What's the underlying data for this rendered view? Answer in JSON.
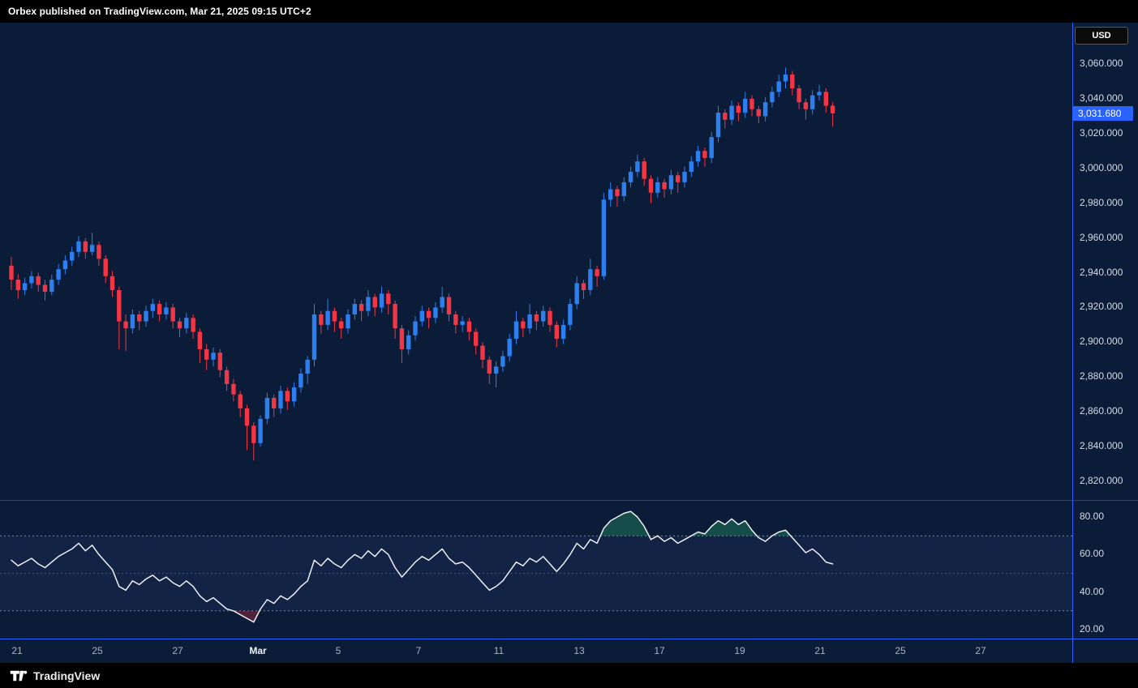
{
  "header": {
    "attribution": "Orbex published on TradingView.com, Mar 21, 2025 09:15 UTC+2"
  },
  "price_axis": {
    "currency_label": "USD",
    "ticks": [
      "3,060.000",
      "3,040.000",
      "3,020.000",
      "3,000.000",
      "2,980.000",
      "2,960.000",
      "2,940.000",
      "2,920.000",
      "2,900.000",
      "2,880.000",
      "2,860.000",
      "2,840.000",
      "2,820.000"
    ],
    "last_price_label": "3,031.680"
  },
  "rsi_axis": {
    "ticks": [
      "80.00",
      "60.00",
      "40.00",
      "20.00"
    ]
  },
  "time_axis": {
    "labels": [
      "21",
      "25",
      "27",
      "Mar",
      "5",
      "7",
      "11",
      "13",
      "17",
      "19",
      "21",
      "25",
      "27"
    ],
    "strong_label_index": 3
  },
  "footer": {
    "brand": "TradingView"
  },
  "colors": {
    "background": "#0a1c38",
    "panel_black": "#000000",
    "up": "#2d7ff0",
    "down": "#f23645",
    "rsi_line": "#eef1f6",
    "rsi_band_line": "#8a91a8",
    "rsi_band_fill": "rgba(125,132,255,0.07)",
    "overbought_fill": "#2fbf71",
    "oversold_fill": "#f23645",
    "frame_blue": "#2962ff",
    "pane_separator": "#3a4662",
    "last_price_bg": "#2962ff",
    "axis_text": "#d6dbe5",
    "time_text": "#a9b2c1"
  },
  "chart_data": {
    "type": "candlestick",
    "subpanel": "rsi",
    "price_axis_range": [
      2820,
      3060
    ],
    "rsi_axis_range": [
      20,
      80
    ],
    "rsi_bands": [
      70,
      50,
      30
    ],
    "last_price": 3031.68,
    "x_labels": [
      "21",
      "25",
      "27",
      "Mar",
      "5",
      "7",
      "11",
      "13",
      "17",
      "19",
      "21",
      "25",
      "27"
    ],
    "legend_position": "none",
    "grid": "off",
    "candles": [
      [
        2944,
        2949,
        2930,
        2936
      ],
      [
        2936,
        2939,
        2925,
        2930
      ],
      [
        2930,
        2937,
        2927,
        2934
      ],
      [
        2934,
        2941,
        2931,
        2938
      ],
      [
        2938,
        2940,
        2929,
        2933
      ],
      [
        2933,
        2936,
        2924,
        2929
      ],
      [
        2929,
        2939,
        2927,
        2936
      ],
      [
        2936,
        2945,
        2933,
        2942
      ],
      [
        2942,
        2950,
        2939,
        2947
      ],
      [
        2947,
        2955,
        2944,
        2952
      ],
      [
        2952,
        2961,
        2949,
        2958
      ],
      [
        2958,
        2960,
        2948,
        2952
      ],
      [
        2952,
        2963,
        2950,
        2956
      ],
      [
        2956,
        2958,
        2944,
        2948
      ],
      [
        2948,
        2950,
        2934,
        2938
      ],
      [
        2938,
        2941,
        2926,
        2930
      ],
      [
        2930,
        2932,
        2896,
        2912
      ],
      [
        2912,
        2916,
        2895,
        2908
      ],
      [
        2908,
        2919,
        2905,
        2916
      ],
      [
        2916,
        2918,
        2907,
        2912
      ],
      [
        2912,
        2921,
        2909,
        2918
      ],
      [
        2918,
        2925,
        2914,
        2922
      ],
      [
        2922,
        2924,
        2912,
        2916
      ],
      [
        2916,
        2923,
        2913,
        2920
      ],
      [
        2920,
        2922,
        2908,
        2912
      ],
      [
        2912,
        2914,
        2903,
        2908
      ],
      [
        2908,
        2917,
        2905,
        2914
      ],
      [
        2914,
        2916,
        2902,
        2906
      ],
      [
        2906,
        2908,
        2888,
        2896
      ],
      [
        2896,
        2899,
        2884,
        2890
      ],
      [
        2890,
        2897,
        2886,
        2894
      ],
      [
        2894,
        2896,
        2880,
        2884
      ],
      [
        2884,
        2886,
        2872,
        2876
      ],
      [
        2876,
        2879,
        2866,
        2870
      ],
      [
        2870,
        2872,
        2857,
        2862
      ],
      [
        2862,
        2864,
        2838,
        2852
      ],
      [
        2852,
        2854,
        2832,
        2842
      ],
      [
        2842,
        2858,
        2840,
        2856
      ],
      [
        2856,
        2871,
        2853,
        2868
      ],
      [
        2868,
        2870,
        2857,
        2862
      ],
      [
        2862,
        2875,
        2859,
        2872
      ],
      [
        2872,
        2874,
        2861,
        2866
      ],
      [
        2866,
        2877,
        2863,
        2874
      ],
      [
        2874,
        2885,
        2871,
        2882
      ],
      [
        2882,
        2892,
        2876,
        2890
      ],
      [
        2890,
        2922,
        2886,
        2916
      ],
      [
        2916,
        2918,
        2905,
        2910
      ],
      [
        2910,
        2925,
        2907,
        2918
      ],
      [
        2918,
        2920,
        2906,
        2912
      ],
      [
        2912,
        2914,
        2902,
        2908
      ],
      [
        2908,
        2919,
        2905,
        2916
      ],
      [
        2916,
        2925,
        2913,
        2922
      ],
      [
        2922,
        2924,
        2912,
        2918
      ],
      [
        2918,
        2930,
        2915,
        2926
      ],
      [
        2926,
        2928,
        2915,
        2920
      ],
      [
        2920,
        2932,
        2917,
        2928
      ],
      [
        2928,
        2930,
        2916,
        2922
      ],
      [
        2922,
        2924,
        2902,
        2908
      ],
      [
        2908,
        2910,
        2888,
        2896
      ],
      [
        2896,
        2907,
        2893,
        2904
      ],
      [
        2904,
        2915,
        2901,
        2912
      ],
      [
        2912,
        2921,
        2909,
        2918
      ],
      [
        2918,
        2920,
        2908,
        2914
      ],
      [
        2914,
        2923,
        2911,
        2920
      ],
      [
        2920,
        2932,
        2917,
        2926
      ],
      [
        2926,
        2928,
        2912,
        2916
      ],
      [
        2916,
        2918,
        2905,
        2910
      ],
      [
        2910,
        2915,
        2906,
        2912
      ],
      [
        2912,
        2914,
        2901,
        2906
      ],
      [
        2906,
        2908,
        2893,
        2898
      ],
      [
        2898,
        2900,
        2885,
        2890
      ],
      [
        2890,
        2892,
        2876,
        2882
      ],
      [
        2882,
        2889,
        2874,
        2886
      ],
      [
        2886,
        2895,
        2883,
        2892
      ],
      [
        2892,
        2905,
        2889,
        2902
      ],
      [
        2902,
        2918,
        2899,
        2912
      ],
      [
        2912,
        2914,
        2903,
        2908
      ],
      [
        2908,
        2922,
        2905,
        2916
      ],
      [
        2916,
        2918,
        2907,
        2912
      ],
      [
        2912,
        2921,
        2909,
        2918
      ],
      [
        2918,
        2920,
        2906,
        2910
      ],
      [
        2910,
        2912,
        2897,
        2902
      ],
      [
        2902,
        2913,
        2899,
        2910
      ],
      [
        2910,
        2925,
        2907,
        2922
      ],
      [
        2922,
        2938,
        2919,
        2934
      ],
      [
        2934,
        2936,
        2925,
        2930
      ],
      [
        2930,
        2948,
        2927,
        2942
      ],
      [
        2942,
        2944,
        2932,
        2938
      ],
      [
        2938,
        2986,
        2936,
        2982
      ],
      [
        2982,
        2992,
        2978,
        2988
      ],
      [
        2988,
        2990,
        2978,
        2984
      ],
      [
        2984,
        2995,
        2981,
        2992
      ],
      [
        2992,
        3001,
        2989,
        2998
      ],
      [
        2998,
        3008,
        2995,
        3004
      ],
      [
        3004,
        3006,
        2990,
        2994
      ],
      [
        2994,
        2996,
        2980,
        2986
      ],
      [
        2986,
        2995,
        2983,
        2992
      ],
      [
        2992,
        2994,
        2983,
        2988
      ],
      [
        2988,
        2999,
        2985,
        2996
      ],
      [
        2996,
        2998,
        2986,
        2992
      ],
      [
        2992,
        3001,
        2989,
        2998
      ],
      [
        2998,
        3007,
        2995,
        3004
      ],
      [
        3004,
        3013,
        3001,
        3010
      ],
      [
        3010,
        3012,
        3001,
        3006
      ],
      [
        3006,
        3021,
        3003,
        3018
      ],
      [
        3018,
        3036,
        3015,
        3032
      ],
      [
        3032,
        3034,
        3023,
        3028
      ],
      [
        3028,
        3039,
        3025,
        3036
      ],
      [
        3036,
        3038,
        3027,
        3032
      ],
      [
        3032,
        3044,
        3029,
        3040
      ],
      [
        3040,
        3042,
        3030,
        3034
      ],
      [
        3034,
        3036,
        3026,
        3030
      ],
      [
        3030,
        3041,
        3027,
        3038
      ],
      [
        3038,
        3047,
        3035,
        3044
      ],
      [
        3044,
        3054,
        3041,
        3050
      ],
      [
        3050,
        3058,
        3046,
        3054
      ],
      [
        3054,
        3056,
        3042,
        3046
      ],
      [
        3046,
        3048,
        3034,
        3038
      ],
      [
        3038,
        3040,
        3028,
        3034
      ],
      [
        3034,
        3045,
        3031,
        3042
      ],
      [
        3042,
        3048,
        3039,
        3044
      ],
      [
        3044,
        3046,
        3032,
        3036
      ],
      [
        3036,
        3038,
        3024,
        3031.68
      ]
    ],
    "rsi": [
      57,
      54,
      56,
      58,
      55,
      53,
      56,
      59,
      61,
      63,
      66,
      62,
      65,
      60,
      56,
      52,
      43,
      41,
      46,
      44,
      47,
      49,
      46,
      48,
      45,
      43,
      46,
      43,
      38,
      35,
      37,
      34,
      31,
      30,
      28,
      26,
      24,
      31,
      36,
      34,
      38,
      36,
      39,
      43,
      46,
      57,
      54,
      58,
      55,
      53,
      57,
      60,
      58,
      62,
      59,
      63,
      60,
      53,
      48,
      52,
      56,
      59,
      57,
      60,
      63,
      58,
      55,
      56,
      53,
      49,
      45,
      41,
      43,
      46,
      51,
      56,
      54,
      58,
      56,
      59,
      55,
      51,
      55,
      60,
      66,
      63,
      68,
      66,
      74,
      78,
      80,
      82,
      83,
      80,
      75,
      68,
      70,
      67,
      69,
      66,
      68,
      70,
      72,
      71,
      75,
      78,
      76,
      79,
      76,
      78,
      73,
      69,
      67,
      70,
      72,
      73,
      69,
      65,
      61,
      63,
      60,
      56,
      55
    ]
  }
}
